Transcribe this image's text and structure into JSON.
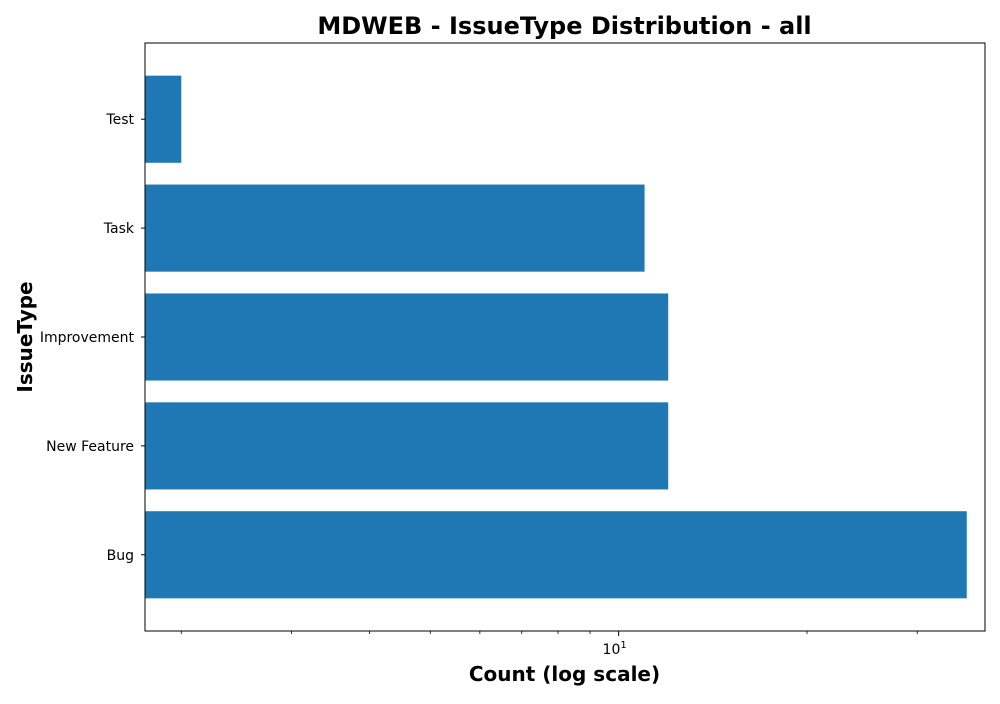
{
  "chart_data": {
    "type": "bar",
    "orientation": "horizontal",
    "title": "MDWEB - IssueType Distribution - all",
    "xlabel": "Count (log scale)",
    "ylabel": "IssueType",
    "x_scale": "log",
    "xlim": [
      1.75,
      38.5
    ],
    "x_major_ticks": [
      {
        "base": "10",
        "exp": "1",
        "value": 10
      }
    ],
    "x_minor_ticks": [
      2,
      3,
      4,
      5,
      6,
      7,
      8,
      9,
      20,
      30
    ],
    "categories": [
      "Bug",
      "New Feature",
      "Improvement",
      "Task",
      "Test"
    ],
    "values": [
      36,
      12,
      12,
      11,
      2
    ],
    "bar_color": "#1f77b4",
    "grid": false,
    "legend": "none"
  }
}
